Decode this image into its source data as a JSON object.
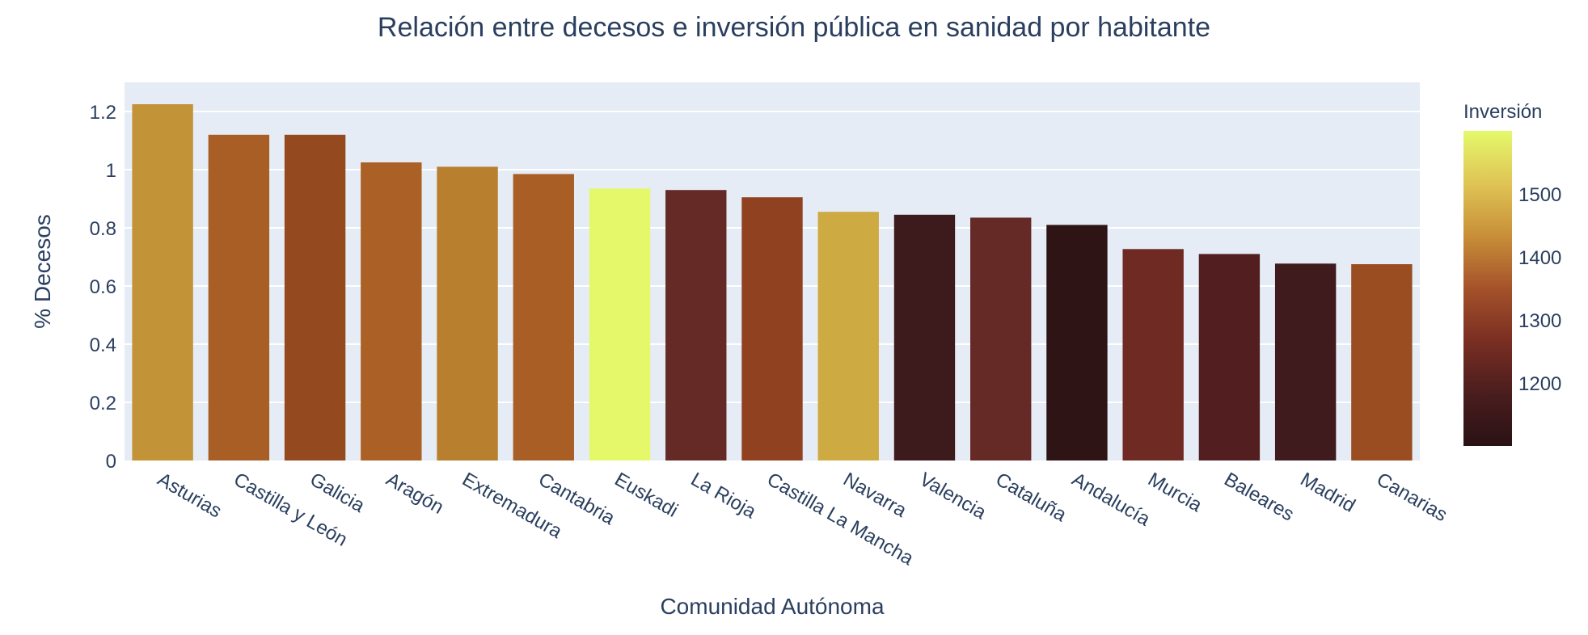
{
  "chart_data": {
    "type": "bar",
    "title": "Relación entre decesos e inversión pública en sanidad por habitante",
    "xlabel": "Comunidad Autónoma",
    "ylabel": "% Decesos",
    "ylim": [
      0,
      1.3
    ],
    "yticks": [
      0,
      0.2,
      0.4,
      0.6,
      0.8,
      1,
      1.2
    ],
    "ytick_labels": [
      "0",
      "0.2",
      "0.4",
      "0.6",
      "0.8",
      "1",
      "1.2"
    ],
    "grid": true,
    "categories": [
      "Asturias",
      "Castilla y León",
      "Galicia",
      "Aragón",
      "Extremadura",
      "Cantabria",
      "Euskadi",
      "La Rioja",
      "Castilla La Mancha",
      "Navarra",
      "Valencia",
      "Cataluña",
      "Andalucía",
      "Murcia",
      "Baleares",
      "Madrid",
      "Canarias"
    ],
    "values": [
      1.225,
      1.12,
      1.12,
      1.025,
      1.01,
      0.985,
      0.935,
      0.93,
      0.905,
      0.855,
      0.845,
      0.835,
      0.81,
      0.727,
      0.71,
      0.677,
      0.675
    ],
    "color_values": [
      1445,
      1365,
      1315,
      1375,
      1430,
      1370,
      1600,
      1210,
      1320,
      1480,
      1130,
      1220,
      1100,
      1250,
      1170,
      1140,
      1330
    ],
    "colors": [
      "#c39337",
      "#a95e26",
      "#95491f",
      "#ab6125",
      "#b77f2e",
      "#a95e26",
      "#e4f86a",
      "#652926",
      "#904220",
      "#ceaa42",
      "#3d1b1c",
      "#652926",
      "#2e1415",
      "#6f2b23",
      "#521e1f",
      "#3f1b1e",
      "#9b4d22"
    ],
    "colorbar": {
      "title": "Inversión",
      "range": [
        1100,
        1600
      ],
      "ticks": [
        1200,
        1300,
        1400,
        1500
      ],
      "tick_labels": [
        "1200",
        "1300",
        "1400",
        "1500"
      ],
      "stops": [
        "#2a1214",
        "#4a1d1e",
        "#7a2e22",
        "#a5522a",
        "#c88f38",
        "#dfc455",
        "#e4f96a"
      ]
    }
  }
}
